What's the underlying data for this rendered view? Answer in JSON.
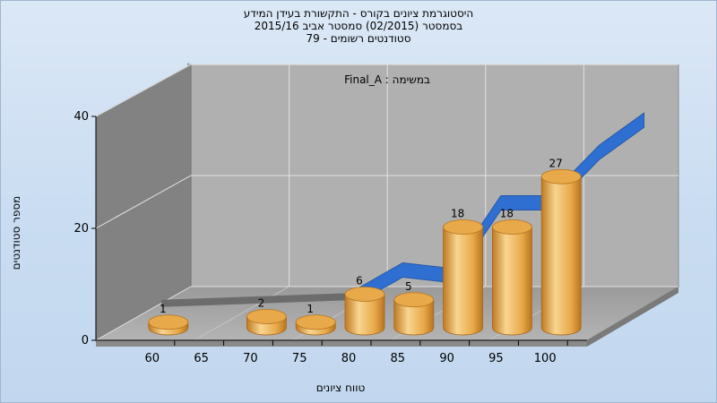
{
  "titles": [
    "היסטוגרמת ציונים בקורס - התקשורת בעידן המידע",
    "בסמסטר  (02/2015)  סמסטר אביב 2015/16",
    "סטודנטים רשומים - 79"
  ],
  "chart_data": {
    "type": "bar",
    "x_ticks": [
      "60",
      "65",
      "70",
      "75",
      "80",
      "85",
      "90",
      "95",
      "100"
    ],
    "y_ticks": [
      "0",
      "20",
      "40"
    ],
    "ylim": [
      0,
      40
    ],
    "ylabel": "מספר סטודנטים",
    "xlabel": "טווח ציונים",
    "annotation": "Final_A : במשימה",
    "series": [
      {
        "x": [
          60,
          70,
          75,
          80,
          85,
          90,
          95,
          100
        ],
        "values": [
          1,
          2,
          1,
          6,
          5,
          18,
          18,
          27
        ],
        "labels": [
          "1",
          "2",
          "1",
          "6",
          "5",
          "18",
          "18",
          "27"
        ]
      }
    ],
    "colors": {
      "bar_light": "#f8d590",
      "bar_mid": "#e8a94a",
      "bar_dark": "#b8741e",
      "ribbon": "#2f6fd1",
      "back_wall": "#b0b0b0",
      "side_wall": "#828282",
      "floor": "#a3a3a3"
    }
  }
}
